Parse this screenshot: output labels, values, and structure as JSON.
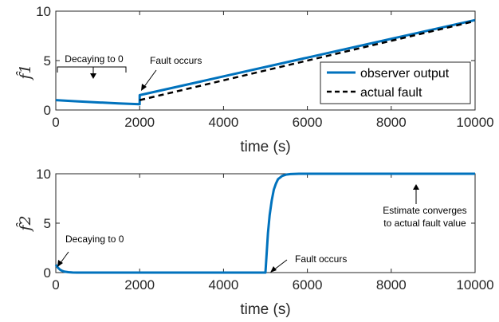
{
  "chart_data": [
    {
      "type": "line",
      "ylabel": "f̂1",
      "xlabel": "time (s)",
      "xlim": [
        0,
        10000
      ],
      "ylim": [
        0,
        10
      ],
      "xticks": [
        "0",
        "2000",
        "4000",
        "6000",
        "8000",
        "10000"
      ],
      "yticks": [
        "0",
        "5",
        "10"
      ],
      "legend_position": "right",
      "series": [
        {
          "name": "observer output",
          "style": "solid",
          "color": "#0072BD",
          "x": [
            0,
            500,
            1000,
            1500,
            1999,
            2000,
            2001,
            4000,
            6000,
            8000,
            10000
          ],
          "y": [
            1.0,
            0.88,
            0.77,
            0.67,
            0.58,
            0.58,
            1.5,
            3.4,
            5.3,
            7.2,
            9.1
          ]
        },
        {
          "name": "actual fault",
          "style": "dashed",
          "color": "#000000",
          "x": [
            2000,
            10000
          ],
          "y": [
            1.0,
            9.0
          ]
        }
      ],
      "annotations": [
        {
          "text": "Decaying to 0",
          "x": 900,
          "y": 5.0
        },
        {
          "text": "Fault occurs",
          "x": 2250,
          "y": 5.0
        }
      ]
    },
    {
      "type": "line",
      "ylabel": "f̂2",
      "xlabel": "time (s)",
      "xlim": [
        0,
        10000
      ],
      "ylim": [
        0,
        10
      ],
      "xticks": [
        "0",
        "2000",
        "4000",
        "6000",
        "8000",
        "10000"
      ],
      "yticks": [
        "0",
        "5",
        "10"
      ],
      "series": [
        {
          "color": "#0072BD",
          "x": [
            0,
            50,
            100,
            150,
            200,
            300,
            400,
            500,
            4999,
            5000,
            5030,
            5060,
            5100,
            5150,
            5200,
            5250,
            5300,
            5400,
            5500,
            5600,
            5800,
            10000
          ],
          "y": [
            0.8,
            0.5,
            0.3,
            0.18,
            0.1,
            0.04,
            0.01,
            0.0,
            0.0,
            0.0,
            2.0,
            4.0,
            5.8,
            7.3,
            8.4,
            9.0,
            9.45,
            9.78,
            9.92,
            9.97,
            10.0,
            10.0
          ]
        }
      ],
      "annotations": [
        {
          "text": "Decaying to 0",
          "x": 150,
          "y": 3.4
        },
        {
          "text": "Fault occurs",
          "x": 5700,
          "y": 1.6
        },
        {
          "text": "Estimate converges",
          "x": 9000,
          "y": 6.1
        },
        {
          "text": "to actual fault value",
          "x": 9000,
          "y": 4.6
        }
      ]
    }
  ]
}
